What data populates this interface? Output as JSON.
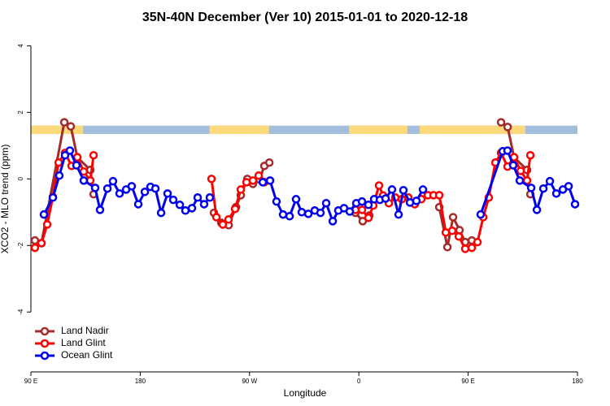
{
  "chart_data": {
    "type": "line",
    "title": "35N-40N December (Ver 10)   2015-01-01 to 2020-12-18",
    "x_label": "Longitude",
    "y_label": "XCO2 - MLO trend (ppm)",
    "xlim": [
      90,
      540
    ],
    "ylim": [
      -5.8,
      4.4
    ],
    "xticks": [
      {
        "value": 90,
        "label": "90 E"
      },
      180,
      {
        "value": 270,
        "label": "90 W"
      },
      {
        "value": 360,
        "label": "0"
      },
      {
        "value": 450,
        "label": "90 E"
      },
      {
        "value": 540,
        "label": "180"
      }
    ],
    "yticks": [
      -4,
      -2,
      0,
      2,
      4
    ],
    "legend": "bottom-left",
    "grid": false,
    "band": {
      "ylim": [
        1.35,
        1.6
      ],
      "ocean_color": "#a3bedc",
      "land_color": "#fcd97a",
      "land": [
        [
          90,
          133
        ],
        [
          237,
          286
        ],
        [
          352,
          400
        ],
        [
          410,
          497
        ]
      ]
    },
    "series": [
      {
        "name": "Land Nadir",
        "color": "#a52a2a",
        "x": [
          93.3,
          98.7,
          117.5,
          122.8,
          128.2,
          138.9,
          141.6,
          null,
          240.7,
          246.7,
          252.8,
          258.8,
          262.8,
          268.2,
          272.8,
          278.2,
          282.2,
          286.3,
          null,
          357.2,
          363.2,
          368.6,
          null,
          426.2,
          432.9,
          437.6,
          442.9,
          447.6,
          453.0,
          null,
          477.1,
          482.5,
          487.8,
          498.5,
          501.2
        ],
        "values": [
          -1.85,
          -1.93,
          1.7,
          1.58,
          0.65,
          0.27,
          -0.46,
          null,
          -1.02,
          -1.32,
          -1.39,
          -0.85,
          -0.49,
          0.0,
          -0.15,
          -0.02,
          0.39,
          0.49,
          null,
          -1.02,
          -1.27,
          -1.1,
          null,
          -0.85,
          -2.05,
          -1.15,
          -1.54,
          -1.9,
          -1.85,
          null,
          1.7,
          1.56,
          0.65,
          0.27,
          -0.46
        ]
      },
      {
        "name": "Land Glint",
        "color": "#ff0000",
        "x": [
          93.3,
          98.7,
          103.4,
          108.1,
          112.8,
          118.1,
          123.5,
          128.2,
          133.5,
          138.9,
          141.6,
          null,
          238.7,
          242.7,
          248.0,
          252.7,
          258.1,
          262.8,
          267.5,
          272.8,
          277.5,
          282.2,
          null,
          357.2,
          362.6,
          367.9,
          371.9,
          376.6,
          380.0,
          384.7,
          390.0,
          395.4,
          400.7,
          406.1,
          411.5,
          416.8,
          421.5,
          426.2,
          431.6,
          436.9,
          442.3,
          447.6,
          453.0,
          457.7,
          462.4,
          467.0,
          472.4,
          477.1,
          482.4,
          487.8,
          493.2,
          498.5,
          501.2
        ],
        "values": [
          -2.07,
          -1.93,
          -1.37,
          -0.54,
          0.49,
          0.78,
          0.39,
          0.65,
          0.22,
          -0.05,
          0.71,
          null,
          0.0,
          -1.15,
          -1.37,
          -1.22,
          -0.9,
          -0.32,
          -0.1,
          -0.05,
          0.1,
          -0.1,
          null,
          -0.93,
          -0.93,
          -1.17,
          -0.8,
          -0.2,
          -0.5,
          -0.73,
          -0.56,
          -0.61,
          -0.56,
          -0.76,
          -0.61,
          -0.49,
          -0.49,
          -0.49,
          -1.61,
          -1.56,
          -1.73,
          -2.1,
          -2.07,
          -1.9,
          -1.15,
          -0.56,
          0.49,
          0.78,
          0.37,
          0.65,
          0.24,
          -0.05,
          0.71
        ]
      },
      {
        "name": "Ocean Glint",
        "color": "#0000ee",
        "x": [
          100.7,
          108.1,
          113.4,
          118.1,
          122.1,
          127.5,
          133.5,
          142.9,
          146.9,
          153.0,
          157.6,
          163.0,
          168.4,
          173.0,
          178.4,
          183.8,
          188.4,
          192.5,
          197.2,
          202.5,
          207.2,
          212.6,
          217.2,
          222.6,
          227.3,
          232.6,
          237.3,
          null,
          280.9,
          286.9,
          292.2,
          297.6,
          303.0,
          308.3,
          313.0,
          318.4,
          323.7,
          328.4,
          333.1,
          338.5,
          343.1,
          347.8,
          352.5,
          357.9,
          362.6,
          367.9,
          372.6,
          377.3,
          382.0,
          387.3,
          392.7,
          396.7,
          402.1,
          407.4,
          412.8,
          null,
          460.3,
          478.4,
          482.4,
          487.1,
          492.5,
          501.9,
          506.6,
          511.9,
          517.3,
          522.6,
          528.0,
          532.7,
          538.0
        ],
        "values": [
          -1.07,
          -0.56,
          0.1,
          0.71,
          0.85,
          0.41,
          -0.05,
          -0.27,
          -0.93,
          -0.29,
          -0.07,
          -0.44,
          -0.32,
          -0.22,
          -0.76,
          -0.39,
          -0.24,
          -0.29,
          -1.02,
          -0.44,
          -0.63,
          -0.78,
          -0.95,
          -0.88,
          -0.56,
          -0.76,
          -0.56,
          null,
          -0.1,
          -0.05,
          -0.68,
          -1.07,
          -1.12,
          -0.61,
          -1.0,
          -1.05,
          -0.95,
          -1.02,
          -0.73,
          -1.27,
          -0.95,
          -0.88,
          -0.98,
          -0.73,
          -0.68,
          -0.78,
          -0.61,
          -0.63,
          -0.59,
          -0.32,
          -1.07,
          -0.34,
          -0.71,
          -0.66,
          -0.32,
          null,
          -1.07,
          0.83,
          0.85,
          0.41,
          -0.05,
          -0.27,
          -0.93,
          -0.29,
          -0.07,
          -0.44,
          -0.32,
          -0.22,
          -0.76
        ]
      }
    ]
  }
}
